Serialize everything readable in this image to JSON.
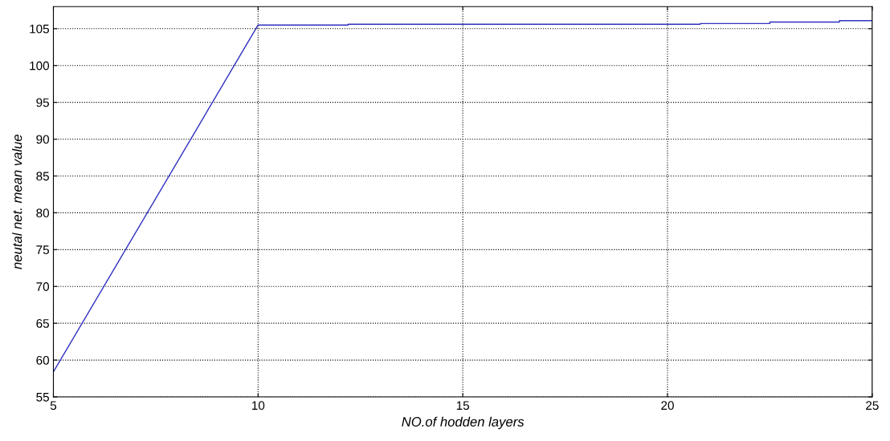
{
  "chart_data": {
    "type": "line",
    "xlabel": "NO.of hodden layers",
    "ylabel": "neutal net. mean value",
    "x": [
      5,
      10,
      12.2,
      12.2,
      20.8,
      20.8,
      22.5,
      22.5,
      24.2,
      24.2,
      25
    ],
    "series": [
      {
        "color": "#3030c0",
        "values": [
          58.4,
          105.5,
          105.5,
          105.6,
          105.6,
          105.7,
          105.7,
          105.9,
          105.9,
          106.1,
          106.1
        ]
      }
    ],
    "xlim": [
      5,
      25
    ],
    "xticks": [
      5,
      10,
      15,
      20,
      25
    ],
    "ylim": [
      55,
      108
    ],
    "yticks": [
      55,
      60,
      65,
      70,
      75,
      80,
      85,
      90,
      95,
      100,
      105
    ],
    "grid": true,
    "line_style": "solid",
    "marker": "none"
  }
}
